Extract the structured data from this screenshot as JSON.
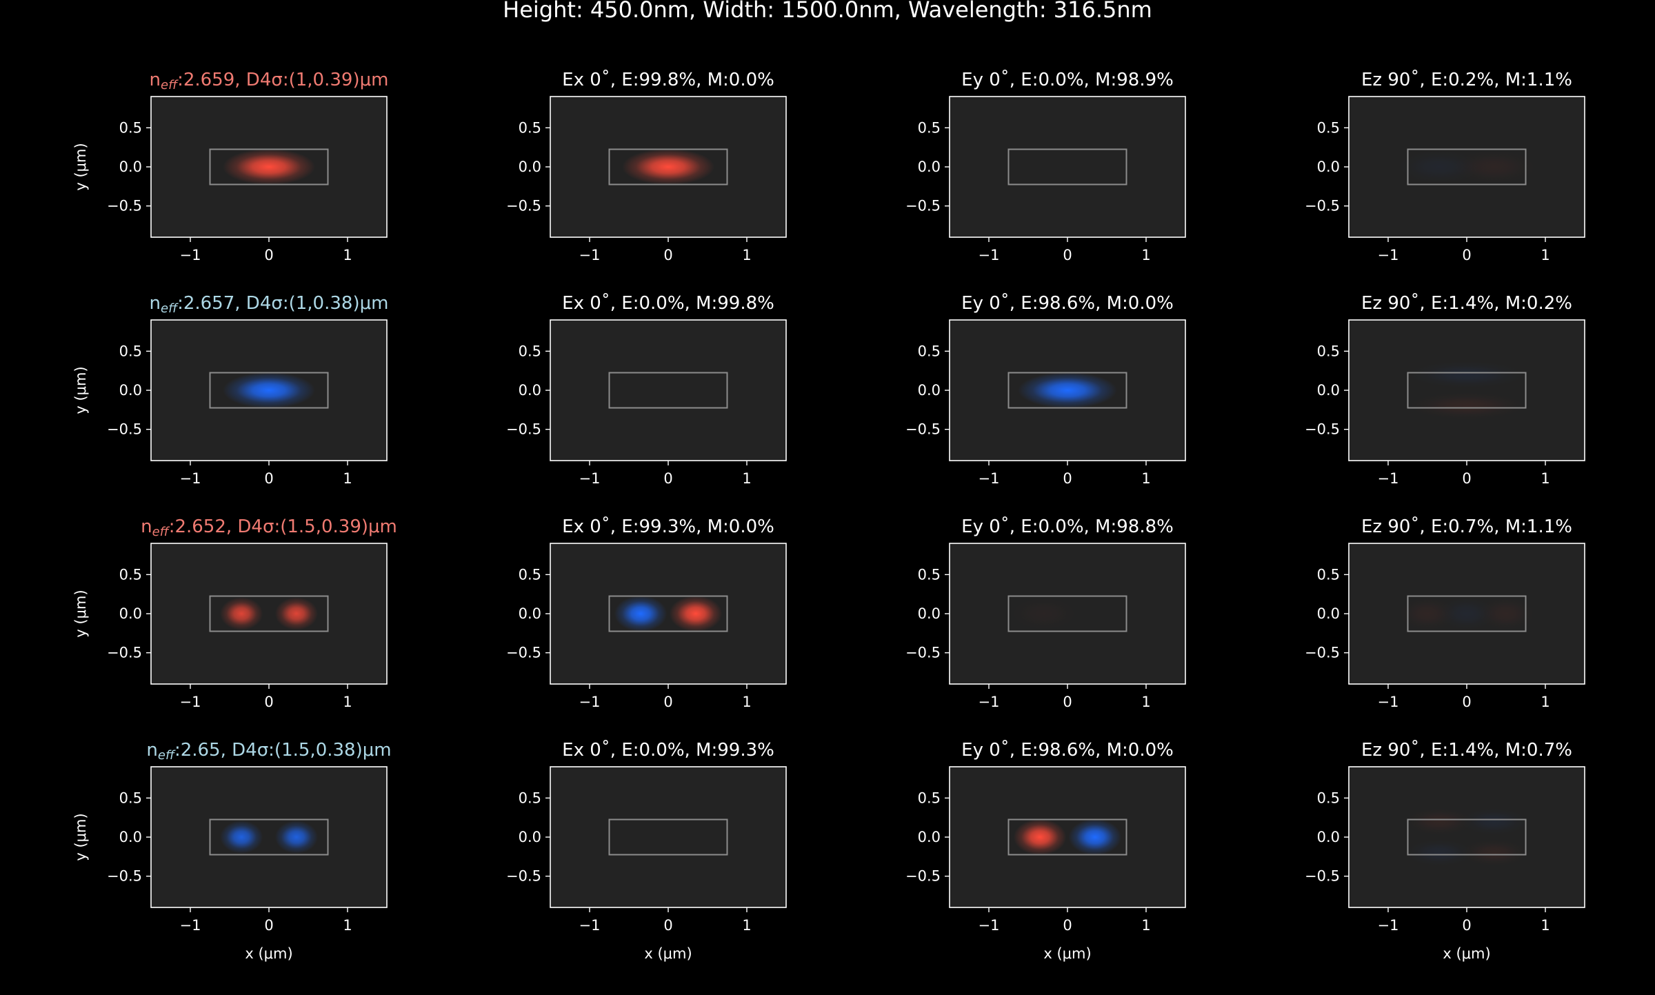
{
  "chart_data": {
    "type": "heatmap",
    "title": "Height: 450.0nm, Width: 1500.0nm, Wavelength: 316.5nm",
    "xlabel": "x (μm)",
    "ylabel": "y (μm)",
    "xlim": [
      -1.5,
      1.5
    ],
    "ylim": [
      -0.9,
      0.9
    ],
    "xticks": [
      -1,
      0,
      1
    ],
    "yticks": [
      0.5,
      0.0,
      -0.5
    ],
    "xtick_labels": [
      "−1",
      "0",
      "1"
    ],
    "ytick_labels": [
      "0.5",
      "0.0",
      "−0.5"
    ],
    "waveguide": {
      "x": [
        -0.75,
        0.75
      ],
      "y": [
        -0.225,
        0.225
      ]
    },
    "colors": {
      "red": "#ff4b3a",
      "blue": "#1f6bff",
      "title_red": "#f07b72",
      "title_blue": "#add8e6",
      "axes_bg": "#232323"
    },
    "rows": [
      {
        "mode_title": {
          "n": "n",
          "sub": "eff",
          "rest": ":2.659, D4σ:(1,0.39)μm",
          "color": "red"
        },
        "panels": [
          {
            "title": "",
            "lobes": [
              {
                "x": 0,
                "y": 0,
                "amp": 1.0,
                "sign": 1
              }
            ],
            "sx": 0.28,
            "sy": 0.11
          },
          {
            "title": "Ex 0˚, E:99.8%, M:0.0%",
            "lobes": [
              {
                "x": 0,
                "y": 0,
                "amp": 1.0,
                "sign": 1
              }
            ],
            "sx": 0.28,
            "sy": 0.11
          },
          {
            "title": "Ey 0˚, E:0.0%, M:98.9%",
            "lobes": [],
            "sx": 0.28,
            "sy": 0.11
          },
          {
            "title": "Ez 90˚, E:0.2%, M:1.1%",
            "lobes": [
              {
                "x": -0.35,
                "y": 0,
                "amp": 0.05,
                "sign": -1
              },
              {
                "x": 0.35,
                "y": 0,
                "amp": 0.05,
                "sign": 1
              }
            ],
            "sx": 0.25,
            "sy": 0.1
          }
        ]
      },
      {
        "mode_title": {
          "n": "n",
          "sub": "eff",
          "rest": ":2.657, D4σ:(1,0.38)μm",
          "color": "blue"
        },
        "panels": [
          {
            "title": "",
            "lobes": [
              {
                "x": 0,
                "y": 0,
                "amp": 1.0,
                "sign": -1
              }
            ],
            "sx": 0.28,
            "sy": 0.11
          },
          {
            "title": "Ex 0˚, E:0.0%, M:99.8%",
            "lobes": [],
            "sx": 0.28,
            "sy": 0.11
          },
          {
            "title": "Ey 0˚, E:98.6%, M:0.0%",
            "lobes": [
              {
                "x": 0,
                "y": 0,
                "amp": 1.0,
                "sign": -1
              }
            ],
            "sx": 0.3,
            "sy": 0.11
          },
          {
            "title": "Ez 90˚, E:1.4%, M:0.2%",
            "lobes": [
              {
                "x": 0,
                "y": 0.2,
                "amp": 0.08,
                "sign": -1
              },
              {
                "x": 0,
                "y": -0.2,
                "amp": 0.08,
                "sign": 1
              }
            ],
            "sx": 0.35,
            "sy": 0.08
          }
        ]
      },
      {
        "mode_title": {
          "n": "n",
          "sub": "eff",
          "rest": ":2.652, D4σ:(1.5,0.39)μm",
          "color": "red"
        },
        "panels": [
          {
            "title": "",
            "lobes": [
              {
                "x": -0.35,
                "y": 0,
                "amp": 0.85,
                "sign": 1
              },
              {
                "x": 0.35,
                "y": 0,
                "amp": 0.85,
                "sign": 1
              }
            ],
            "sx": 0.13,
            "sy": 0.1
          },
          {
            "title": "Ex 0˚, E:99.3%, M:0.0%",
            "lobes": [
              {
                "x": -0.35,
                "y": 0,
                "amp": 1.0,
                "sign": -1
              },
              {
                "x": 0.35,
                "y": 0,
                "amp": 1.0,
                "sign": 1
              }
            ],
            "sx": 0.16,
            "sy": 0.11
          },
          {
            "title": "Ey 0˚, E:0.0%, M:98.8%",
            "lobes": [
              {
                "x": -0.3,
                "y": 0,
                "amp": 0.03,
                "sign": 1
              }
            ],
            "sx": 0.2,
            "sy": 0.1
          },
          {
            "title": "Ez 90˚, E:0.7%, M:1.1%",
            "lobes": [
              {
                "x": -0.5,
                "y": 0,
                "amp": 0.06,
                "sign": 1
              },
              {
                "x": 0,
                "y": 0,
                "amp": 0.06,
                "sign": -1
              },
              {
                "x": 0.5,
                "y": 0,
                "amp": 0.06,
                "sign": 1
              }
            ],
            "sx": 0.17,
            "sy": 0.1
          }
        ]
      },
      {
        "mode_title": {
          "n": "n",
          "sub": "eff",
          "rest": ":2.65, D4σ:(1.5,0.38)μm",
          "color": "blue"
        },
        "panels": [
          {
            "title": "",
            "lobes": [
              {
                "x": -0.35,
                "y": 0,
                "amp": 0.85,
                "sign": -1
              },
              {
                "x": 0.35,
                "y": 0,
                "amp": 0.85,
                "sign": -1
              }
            ],
            "sx": 0.13,
            "sy": 0.1
          },
          {
            "title": "Ex 0˚, E:0.0%, M:99.3%",
            "lobes": [],
            "sx": 0.16,
            "sy": 0.11
          },
          {
            "title": "Ey 0˚, E:98.6%, M:0.0%",
            "lobes": [
              {
                "x": -0.35,
                "y": 0,
                "amp": 1.0,
                "sign": 1
              },
              {
                "x": 0.35,
                "y": 0,
                "amp": 1.0,
                "sign": -1
              }
            ],
            "sx": 0.16,
            "sy": 0.11
          },
          {
            "title": "Ez 90˚, E:1.4%, M:0.7%",
            "lobes": [
              {
                "x": -0.35,
                "y": 0.2,
                "amp": 0.07,
                "sign": 1
              },
              {
                "x": 0.35,
                "y": 0.2,
                "amp": 0.07,
                "sign": -1
              },
              {
                "x": -0.35,
                "y": -0.2,
                "amp": 0.07,
                "sign": -1
              },
              {
                "x": 0.35,
                "y": -0.2,
                "amp": 0.07,
                "sign": 1
              }
            ],
            "sx": 0.2,
            "sy": 0.08
          }
        ]
      }
    ]
  }
}
